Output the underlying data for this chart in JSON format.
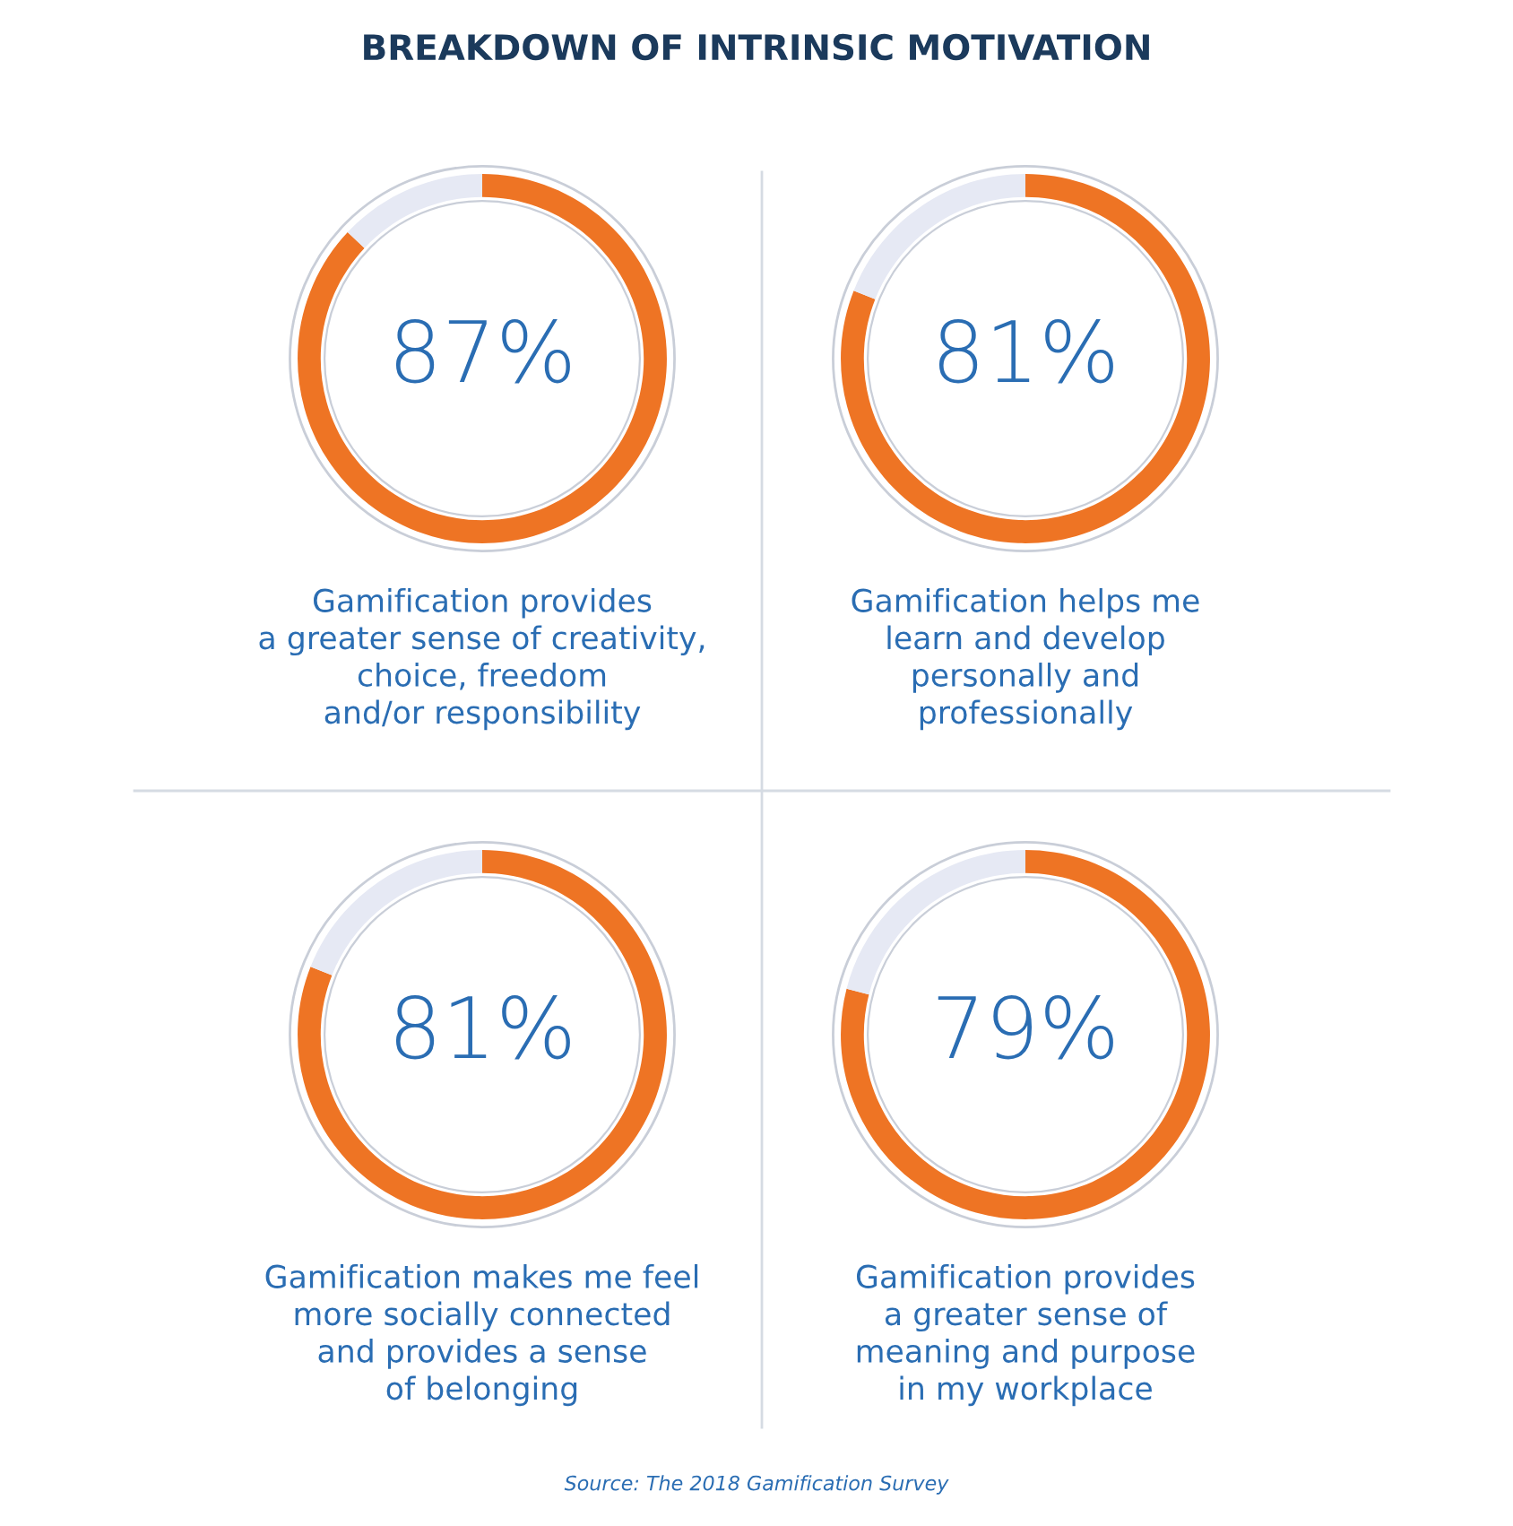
{
  "chart_data": [
    {
      "type": "donut",
      "title": "BREAKDOWN OF INTRINSIC MOTIVATION",
      "categories": [
        null,
        null
      ],
      "values": [
        87,
        13
      ],
      "colors": [
        "#ee7424",
        "#e6e9f4"
      ],
      "value_labels": [
        "87%",
        null
      ],
      "xlabel": "Gamification provides\na greater sense of creativity,\nchoice, freedom\nand/or responsibility"
    },
    {
      "type": "donut",
      "categories": [
        null,
        null
      ],
      "values": [
        81,
        19
      ],
      "colors": [
        "#ee7424",
        "#e6e9f4"
      ],
      "value_labels": [
        "81%",
        null
      ],
      "xlabel": "Gamification helps me\nlearn and develop\npersonally and\nprofessionally"
    },
    {
      "type": "donut",
      "categories": [
        null,
        null
      ],
      "values": [
        81,
        19
      ],
      "colors": [
        "#ee7424",
        "#e6e9f4"
      ],
      "value_labels": [
        "81%",
        null
      ],
      "xlabel": "Gamification makes me feel\nmore socially connected\nand provides a sense\nof belonging"
    },
    {
      "type": "donut",
      "categories": [
        null,
        null
      ],
      "values": [
        79,
        21
      ],
      "colors": [
        "#ee7424",
        "#e6e9f4"
      ],
      "value_labels": [
        "79%",
        null
      ],
      "xlabel": "Gamification provides\na greater sense of\nmeaning and purpose\nin my workplace",
      "annotations": [
        "Source: The 2018 Gamification Survey"
      ]
    }
  ]
}
